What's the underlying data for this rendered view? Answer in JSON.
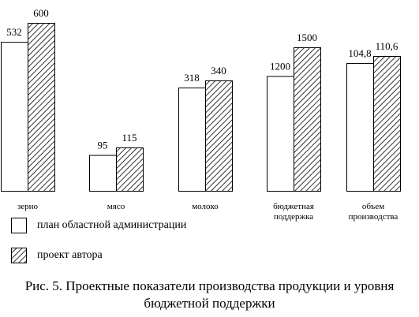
{
  "chart_data": {
    "type": "bar",
    "categories": [
      "зерно",
      "мясо",
      "молоко",
      "бюджетная поддержка",
      "объем производства"
    ],
    "category_lines": [
      [
        "зерно"
      ],
      [
        "мясо"
      ],
      [
        "молоко"
      ],
      [
        "бюджетная",
        "поддержка"
      ],
      [
        "объем",
        "производства"
      ]
    ],
    "series": [
      {
        "name": "план областной администрации",
        "values": [
          532,
          95,
          318,
          1200,
          104.8
        ],
        "labels": [
          "532",
          "95",
          "318",
          "1200",
          "104,8"
        ],
        "fill": "white"
      },
      {
        "name": "проект автора",
        "values": [
          600,
          115,
          340,
          1500,
          110.6
        ],
        "labels": [
          "600",
          "115",
          "340",
          "1500",
          "110,6"
        ],
        "fill": "hatched"
      }
    ],
    "title": "Рис. 5. Проектные показатели производства продукции и уровня бюджетной поддержки",
    "xlabel": "",
    "ylabel": "",
    "note": "Categories are plotted on independent scales; no value axis is shown."
  },
  "legend": {
    "plan": "план областной администрации",
    "author": "проект автора"
  },
  "caption": {
    "line1": "Рис. 5. Проектные показатели производства продукции и уровня",
    "line2": "бюджетной поддержки"
  },
  "colors": {
    "outline": "#000000",
    "background": "#ffffff",
    "hatch": "#000000"
  }
}
